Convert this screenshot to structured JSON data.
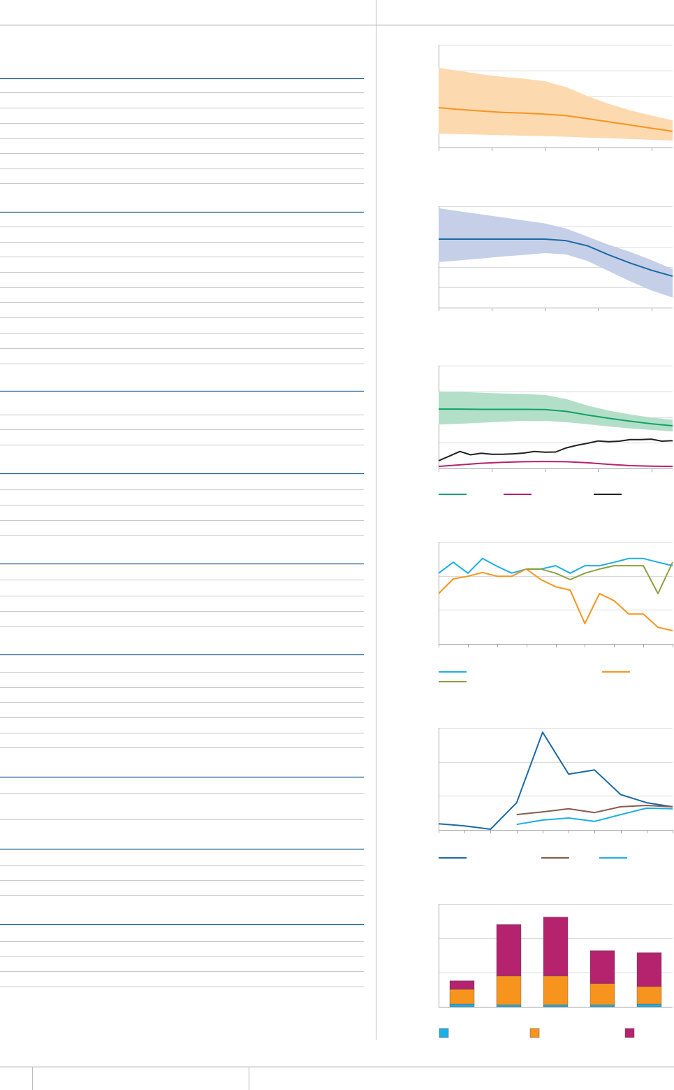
{
  "chart_data": [
    {
      "type": "line",
      "xlim": [
        0,
        22
      ],
      "xticks": [
        0,
        5,
        10,
        15,
        20
      ],
      "ylim": [
        0,
        4
      ],
      "yticks": [
        0,
        1,
        2,
        3,
        4
      ],
      "grid": true,
      "series": [
        {
          "color": "#f7941d",
          "band_color": "#fdd9b0",
          "x": [
            0,
            2,
            4,
            6,
            8,
            10,
            12,
            14,
            16,
            18,
            20,
            22
          ],
          "values": [
            1.55,
            1.48,
            1.42,
            1.37,
            1.34,
            1.3,
            1.24,
            1.12,
            1.0,
            0.88,
            0.75,
            0.63
          ],
          "upper": [
            3.1,
            2.98,
            2.85,
            2.75,
            2.68,
            2.58,
            2.35,
            2.0,
            1.7,
            1.45,
            1.25,
            1.06
          ],
          "lower": [
            0.54,
            0.52,
            0.5,
            0.48,
            0.46,
            0.44,
            0.42,
            0.39,
            0.36,
            0.33,
            0.3,
            0.27
          ]
        }
      ]
    },
    {
      "type": "line",
      "xlim": [
        0,
        22
      ],
      "xticks": [
        0,
        5,
        10,
        15,
        20
      ],
      "ylim": [
        0,
        5
      ],
      "yticks": [
        0,
        1,
        2,
        3,
        4,
        5
      ],
      "grid": true,
      "series": [
        {
          "color": "#1b6aa5",
          "band_color": "#c5cfe8",
          "x": [
            0,
            2,
            4,
            6,
            8,
            10,
            12,
            14,
            16,
            18,
            20,
            22
          ],
          "values": [
            3.38,
            3.38,
            3.38,
            3.38,
            3.38,
            3.38,
            3.3,
            3.05,
            2.6,
            2.2,
            1.85,
            1.55
          ],
          "upper": [
            4.9,
            4.75,
            4.6,
            4.45,
            4.3,
            4.15,
            3.9,
            3.5,
            3.1,
            2.75,
            2.35,
            1.9
          ],
          "lower": [
            2.24,
            2.33,
            2.42,
            2.52,
            2.6,
            2.69,
            2.62,
            2.3,
            1.8,
            1.3,
            0.85,
            0.5
          ]
        }
      ]
    },
    {
      "type": "line",
      "xlim": [
        0,
        22
      ],
      "xticks": [
        0,
        5,
        10,
        15,
        20
      ],
      "ylim": [
        0,
        4
      ],
      "yticks": [
        0,
        1,
        2,
        3,
        4
      ],
      "grid": true,
      "series": [
        {
          "color": "#0fa36b",
          "band_color": "#b3dfc8",
          "x": [
            0,
            2,
            4,
            6,
            8,
            10,
            12,
            14,
            16,
            18,
            20,
            22
          ],
          "values": [
            2.31,
            2.31,
            2.3,
            2.3,
            2.3,
            2.29,
            2.22,
            2.08,
            1.95,
            1.84,
            1.74,
            1.66
          ],
          "upper": [
            3.0,
            2.98,
            2.95,
            2.92,
            2.9,
            2.86,
            2.7,
            2.45,
            2.25,
            2.1,
            1.98,
            1.9
          ],
          "lower": [
            1.71,
            1.74,
            1.78,
            1.82,
            1.85,
            1.85,
            1.8,
            1.72,
            1.63,
            1.56,
            1.5,
            1.44
          ]
        },
        {
          "color": "#b5226d",
          "x": [
            0,
            2,
            4,
            6,
            8,
            10,
            12,
            14,
            16,
            18,
            20,
            22
          ],
          "values": [
            0.08,
            0.14,
            0.2,
            0.24,
            0.26,
            0.27,
            0.26,
            0.22,
            0.16,
            0.11,
            0.09,
            0.08
          ]
        },
        {
          "color": "#231f20",
          "x": [
            0,
            1,
            2,
            3,
            4,
            5,
            6,
            7,
            8,
            9,
            10,
            11,
            12,
            13,
            14,
            15,
            16,
            17,
            18,
            19,
            20,
            21,
            22
          ],
          "values": [
            0.3,
            0.48,
            0.66,
            0.53,
            0.59,
            0.55,
            0.55,
            0.57,
            0.6,
            0.66,
            0.63,
            0.64,
            0.8,
            0.9,
            0.98,
            1.07,
            1.04,
            1.06,
            1.12,
            1.12,
            1.14,
            1.06,
            1.08
          ]
        }
      ]
    },
    {
      "type": "line",
      "xlim": [
        0,
        16
      ],
      "xticks": [
        0,
        2,
        4,
        6,
        8,
        10,
        12,
        14,
        16
      ],
      "ylim": [
        0,
        3
      ],
      "yticks": [
        0,
        1,
        2,
        3
      ],
      "grid": true,
      "series": [
        {
          "color": "#1cafe5",
          "x": [
            0,
            1,
            2,
            3,
            4,
            5,
            6,
            7,
            8,
            9,
            10,
            11,
            12,
            13,
            14,
            15,
            16
          ],
          "values": [
            2.08,
            2.4,
            2.08,
            2.51,
            2.28,
            2.08,
            2.2,
            2.2,
            2.3,
            2.08,
            2.3,
            2.3,
            2.4,
            2.51,
            2.51,
            2.4,
            2.3
          ]
        },
        {
          "color": "#f7941d",
          "x": [
            0,
            1,
            2,
            3,
            4,
            5,
            6,
            7,
            8,
            9,
            10,
            11,
            12,
            13,
            14,
            15,
            16
          ],
          "values": [
            1.48,
            1.91,
            1.99,
            2.1,
            1.99,
            1.99,
            2.2,
            1.89,
            1.68,
            1.58,
            0.6,
            1.48,
            1.27,
            0.88,
            0.88,
            0.49,
            0.39
          ]
        },
        {
          "color": "#8da03f",
          "x": [
            6,
            7,
            8,
            9,
            10,
            11,
            12,
            13,
            14,
            15,
            16
          ],
          "values": [
            2.2,
            2.2,
            2.08,
            1.89,
            2.08,
            2.2,
            2.3,
            2.3,
            2.3,
            1.48,
            2.4
          ]
        }
      ]
    },
    {
      "type": "line",
      "xlim": [
        0,
        9
      ],
      "xticks": [
        0,
        1,
        2,
        3,
        4,
        5,
        6,
        7,
        8,
        9
      ],
      "ylim": [
        0,
        3
      ],
      "yticks": [
        0,
        1,
        2,
        3
      ],
      "grid": true,
      "series": [
        {
          "color": "#1b6aa5",
          "x": [
            0,
            1,
            2,
            3,
            4,
            5,
            6,
            7,
            8,
            9
          ],
          "values": [
            0.18,
            0.12,
            0.02,
            0.8,
            2.87,
            1.64,
            1.76,
            1.04,
            0.8,
            0.68
          ]
        },
        {
          "color": "#8b5a4e",
          "x": [
            3,
            4,
            5,
            6,
            7,
            8,
            9
          ],
          "values": [
            0.45,
            0.53,
            0.62,
            0.51,
            0.68,
            0.72,
            0.68
          ]
        },
        {
          "color": "#1cafe5",
          "x": [
            3,
            4,
            5,
            6,
            7,
            8,
            9
          ],
          "values": [
            0.16,
            0.29,
            0.35,
            0.25,
            0.45,
            0.64,
            0.62
          ]
        }
      ]
    },
    {
      "type": "bar",
      "stacked": true,
      "categories": [
        null,
        null,
        null,
        null,
        null
      ],
      "ylim": [
        0,
        3
      ],
      "yticks": [
        0,
        1,
        2,
        3
      ],
      "grid": true,
      "series": [
        {
          "color": "#1cafe5",
          "values": [
            0.08,
            0.06,
            0.06,
            0.06,
            0.08
          ]
        },
        {
          "color": "#f7941d",
          "values": [
            0.43,
            0.84,
            0.84,
            0.62,
            0.51
          ]
        },
        {
          "color": "#b5226d",
          "values": [
            0.25,
            1.5,
            1.72,
            0.96,
            0.99
          ]
        }
      ]
    }
  ]
}
